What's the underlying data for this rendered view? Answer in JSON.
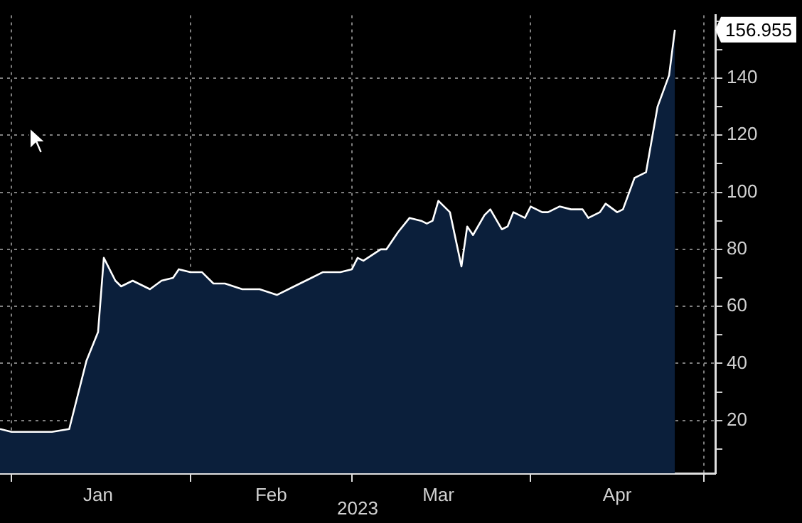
{
  "chart_data": {
    "type": "area",
    "xlabel": "2023",
    "color": "#0b1f3b",
    "x": [
      "2022-12-30",
      "2023-01-01",
      "2023-01-08",
      "2023-01-11",
      "2023-01-14",
      "2023-01-16",
      "2023-01-17",
      "2023-01-19",
      "2023-01-20",
      "2023-01-22",
      "2023-01-24",
      "2023-01-25",
      "2023-01-27",
      "2023-01-29",
      "2023-01-30",
      "2023-02-01",
      "2023-02-03",
      "2023-02-05",
      "2023-02-07",
      "2023-02-10",
      "2023-02-13",
      "2023-02-16",
      "2023-02-19",
      "2023-02-22",
      "2023-02-24",
      "2023-02-27",
      "2023-03-01",
      "2023-03-02",
      "2023-03-03",
      "2023-03-06",
      "2023-03-07",
      "2023-03-09",
      "2023-03-11",
      "2023-03-13",
      "2023-03-14",
      "2023-03-15",
      "2023-03-16",
      "2023-03-18",
      "2023-03-20",
      "2023-03-21",
      "2023-03-22",
      "2023-03-24",
      "2023-03-25",
      "2023-03-27",
      "2023-03-28",
      "2023-03-29",
      "2023-03-31",
      "2023-04-01",
      "2023-04-03",
      "2023-04-04",
      "2023-04-06",
      "2023-04-08",
      "2023-04-10",
      "2023-04-11",
      "2023-04-13",
      "2023-04-14",
      "2023-04-16",
      "2023-04-17",
      "2023-04-19",
      "2023-04-21",
      "2023-04-23",
      "2023-04-25",
      "2023-04-26"
    ],
    "values": [
      17,
      16,
      16,
      17,
      41,
      51,
      77,
      69,
      67,
      69,
      67,
      66,
      69,
      70,
      73,
      72,
      72,
      68,
      68,
      66,
      66,
      64,
      67,
      70,
      72,
      72,
      73,
      77,
      76,
      80,
      80,
      86,
      91,
      90,
      89,
      90,
      97,
      93,
      74,
      88,
      85,
      92,
      94,
      87,
      88,
      93,
      91,
      95,
      93,
      93,
      95,
      94,
      94,
      91,
      93,
      96,
      93,
      94,
      105,
      107,
      130,
      141,
      156.955
    ],
    "xlim": [
      "2022-12-30",
      "2023-05-03"
    ],
    "xticks": [
      {
        "value": "2023-01-01",
        "label": null
      },
      {
        "value": "2023-02-01",
        "label": null
      },
      {
        "value": "2023-03-01",
        "label": null
      },
      {
        "value": "2023-04-01",
        "label": null
      },
      {
        "value": "2023-05-01",
        "label": null
      },
      {
        "value": "2023-01-16",
        "label": "Jan"
      },
      {
        "value": "2023-02-15",
        "label": "Feb"
      },
      {
        "value": "2023-03-16",
        "label": "Mar"
      },
      {
        "value": "2023-04-16",
        "label": "Apr"
      }
    ],
    "ylim": [
      1.5,
      162
    ],
    "yticks": [
      {
        "value": 10,
        "label": null
      },
      20,
      {
        "value": 30,
        "label": null
      },
      40,
      {
        "value": 50,
        "label": null
      },
      60,
      {
        "value": 70,
        "label": null
      },
      80,
      {
        "value": 90,
        "label": null
      },
      100,
      {
        "value": 110,
        "label": null
      },
      120,
      {
        "value": 130,
        "label": null
      },
      140,
      {
        "value": 150,
        "label": null
      },
      {
        "value": 160,
        "label": null
      }
    ],
    "grid": true,
    "legend": false,
    "marker": "none",
    "line_style": "solid",
    "annotations": [
      {
        "text": "156.955",
        "x": "2023-04-26",
        "y": 156.955
      }
    ]
  }
}
